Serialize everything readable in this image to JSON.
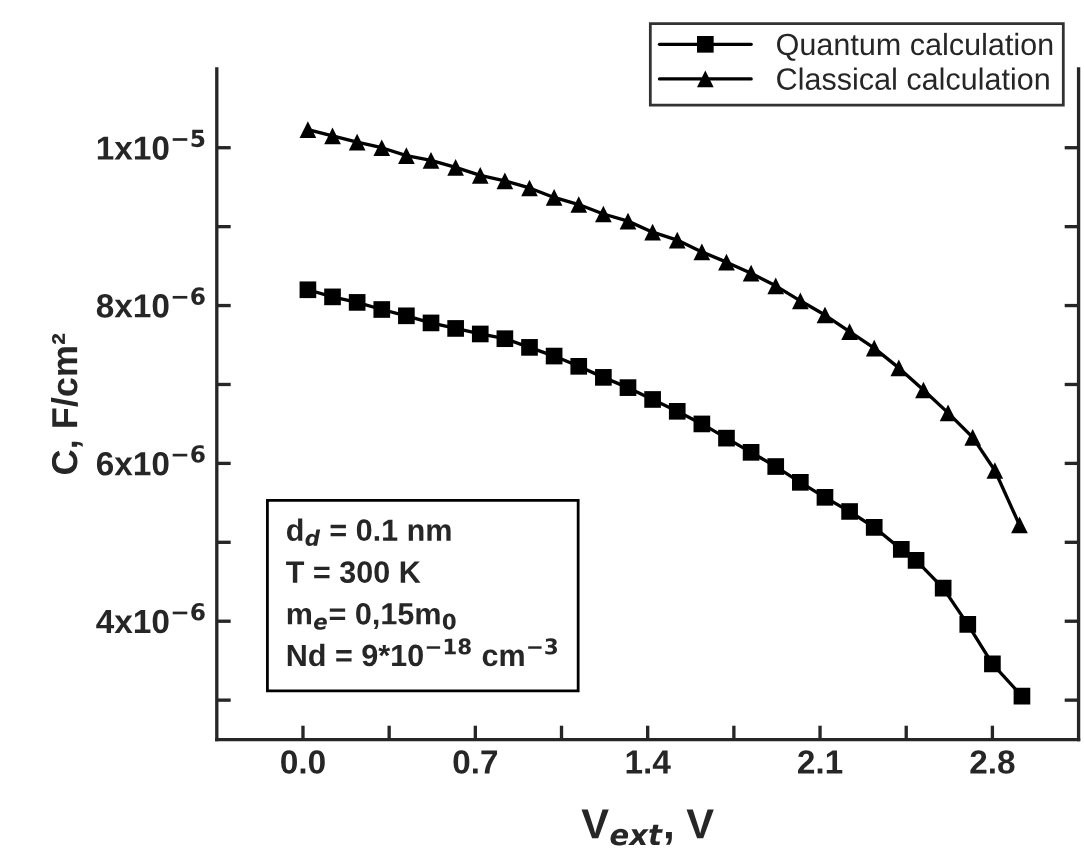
{
  "chart_data": {
    "type": "line",
    "xlabel": "V$_{ext}$, V",
    "ylabel": "C, F/cm²",
    "xlim": [
      -0.35,
      3.15
    ],
    "xticks": [
      {
        "value": 0.0,
        "label": "0.0"
      },
      {
        "value": 0.35,
        "label": null
      },
      {
        "value": 0.7,
        "label": "0.7"
      },
      {
        "value": 1.05,
        "label": null
      },
      {
        "value": 1.4,
        "label": "1.4"
      },
      {
        "value": 1.75,
        "label": null
      },
      {
        "value": 2.1,
        "label": "2.1"
      },
      {
        "value": 2.45,
        "label": null
      },
      {
        "value": 2.8,
        "label": "2.8"
      }
    ],
    "ylim": [
      2.5e-06,
      1.1e-05
    ],
    "yticks": [
      {
        "value": 3e-06,
        "label": null
      },
      {
        "value": 4e-06,
        "label": "4x10$^{−6}$"
      },
      {
        "value": 5e-06,
        "label": null
      },
      {
        "value": 6e-06,
        "label": "6x10$^{−6}$"
      },
      {
        "value": 7e-06,
        "label": null
      },
      {
        "value": 8e-06,
        "label": "8x10$^{−6}$"
      },
      {
        "value": 9e-06,
        "label": null
      },
      {
        "value": 1e-05,
        "label": "1x10$^{−5}$"
      }
    ],
    "legend": "top right",
    "grid": false,
    "line_style": "solid",
    "annotations": [
      "d$_{d}$ = 0.1 nm\nT = 300 K\nm$_{e}$= 0,15m$_{0}$\nNd = 9*10$^{−18}$ cm$^{−3}$"
    ],
    "series": [
      {
        "name": "Quantum calculation",
        "color": "#000000",
        "marker": "square",
        "x": [
          0.02,
          0.12,
          0.22,
          0.32,
          0.42,
          0.52,
          0.62,
          0.72,
          0.82,
          0.92,
          1.02,
          1.12,
          1.22,
          1.32,
          1.42,
          1.52,
          1.62,
          1.72,
          1.82,
          1.92,
          2.02,
          2.12,
          2.22,
          2.32,
          2.43,
          2.49,
          2.6,
          2.7,
          2.8,
          2.92
        ],
        "values": [
          8.2e-06,
          8.11e-06,
          8.04e-06,
          7.95e-06,
          7.87e-06,
          7.78e-06,
          7.71e-06,
          7.64e-06,
          7.58e-06,
          7.47e-06,
          7.36e-06,
          7.23e-06,
          7.09e-06,
          6.96e-06,
          6.81e-06,
          6.66e-06,
          6.5e-06,
          6.32e-06,
          6.14e-06,
          5.96e-06,
          5.76e-06,
          5.57e-06,
          5.39e-06,
          5.19e-06,
          4.91e-06,
          4.77e-06,
          4.42e-06,
          3.96e-06,
          3.46e-06,
          3.05e-06
        ]
      },
      {
        "name": "Classical calculation",
        "color": "#000000",
        "marker": "triangle",
        "x": [
          0.02,
          0.12,
          0.22,
          0.32,
          0.42,
          0.52,
          0.62,
          0.72,
          0.82,
          0.92,
          1.02,
          1.12,
          1.22,
          1.32,
          1.42,
          1.52,
          1.62,
          1.72,
          1.82,
          1.92,
          2.02,
          2.12,
          2.22,
          2.32,
          2.42,
          2.52,
          2.62,
          2.72,
          2.81,
          2.91
        ],
        "values": [
          1.023e-05,
          1.015e-05,
          1.007e-05,
          1e-05,
          9.9e-06,
          9.84e-06,
          9.75e-06,
          9.65e-06,
          9.58e-06,
          9.49e-06,
          9.37e-06,
          9.28e-06,
          9.16e-06,
          9.07e-06,
          8.93e-06,
          8.83e-06,
          8.68e-06,
          8.55e-06,
          8.41e-06,
          8.25e-06,
          8.06e-06,
          7.88e-06,
          7.67e-06,
          7.46e-06,
          7.21e-06,
          6.93e-06,
          6.64e-06,
          6.33e-06,
          5.91e-06,
          5.22e-06
        ]
      }
    ]
  }
}
